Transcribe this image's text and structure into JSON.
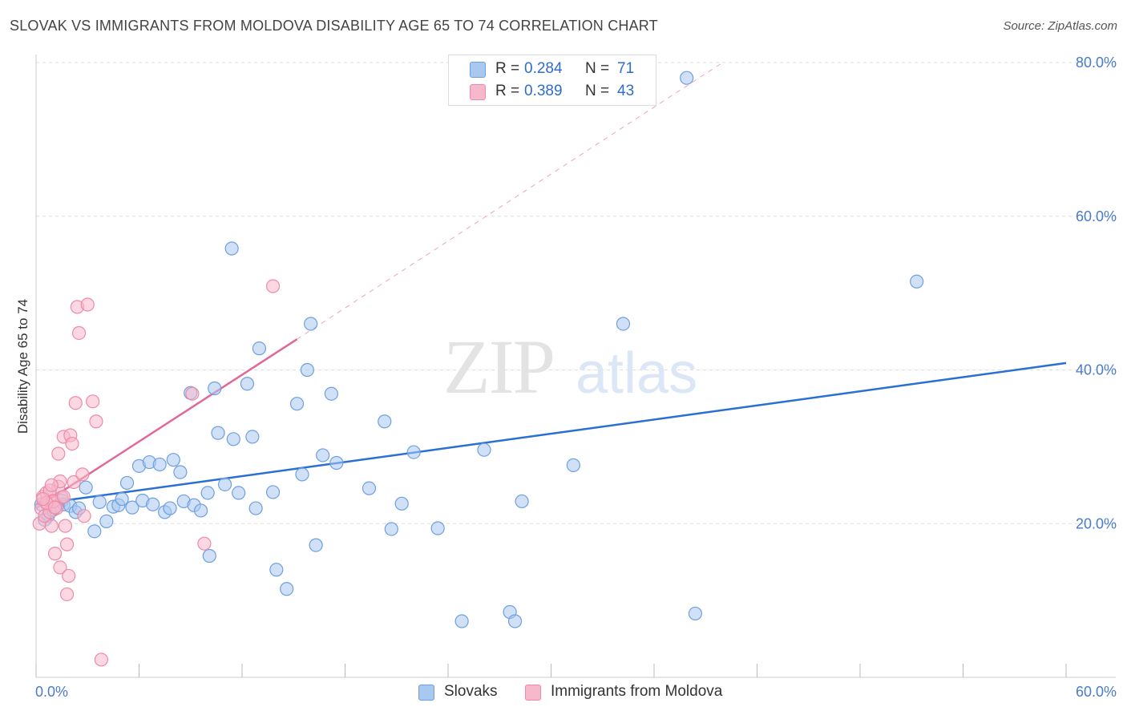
{
  "title": "SLOVAK VS IMMIGRANTS FROM MOLDOVA DISABILITY AGE 65 TO 74 CORRELATION CHART",
  "source": "Source: ZipAtlas.com",
  "watermark": {
    "zip": "ZIP",
    "atlas": "atlas"
  },
  "legend": {
    "rows": [
      {
        "r_label": "R = ",
        "r_value": "0.284",
        "n_label": "N = ",
        "n_value": "71"
      },
      {
        "r_label": "R = ",
        "r_value": "0.389",
        "n_label": "N = ",
        "n_value": "43"
      }
    ],
    "bottom": [
      "Slovaks",
      "Immigrants from Moldova"
    ]
  },
  "colors": {
    "blue_fill": "#a9c8f0",
    "blue_stroke": "#6e9fe0",
    "blue_line": "#2a6fd4",
    "pink_fill": "#f7b8cb",
    "pink_stroke": "#ee8aa8",
    "pink_line": "#e0689a",
    "tick_text": "#4a7bd0",
    "grid": "#dddddd"
  },
  "chart_data": {
    "type": "scatter",
    "title": "SLOVAK VS IMMIGRANTS FROM MOLDOVA DISABILITY AGE 65 TO 74 CORRELATION CHART",
    "xlabel": "",
    "ylabel": "Disability Age 65 to 74",
    "xlim": [
      0,
      60
    ],
    "ylim": [
      0,
      80
    ],
    "x_tick_labels": [
      "0.0%",
      "60.0%"
    ],
    "y_tick_labels": [
      "20.0%",
      "40.0%",
      "60.0%",
      "80.0%"
    ],
    "y_ticks": [
      20,
      40,
      60,
      80
    ],
    "grid": true,
    "series": [
      {
        "name": "Slovaks",
        "color": "#a9c8f0",
        "points": [
          [
            0.3,
            22.5
          ],
          [
            0.7,
            21.0
          ],
          [
            1.0,
            21.8
          ],
          [
            1.5,
            23.0
          ],
          [
            1.6,
            22.5
          ],
          [
            2.0,
            22.3
          ],
          [
            2.3,
            21.5
          ],
          [
            2.5,
            22.0
          ],
          [
            2.9,
            24.7
          ],
          [
            3.4,
            19.0
          ],
          [
            3.7,
            22.8
          ],
          [
            4.1,
            20.3
          ],
          [
            4.5,
            22.2
          ],
          [
            4.8,
            22.4
          ],
          [
            5.0,
            23.2
          ],
          [
            5.3,
            25.3
          ],
          [
            5.6,
            22.1
          ],
          [
            6.0,
            27.5
          ],
          [
            6.2,
            23.0
          ],
          [
            6.6,
            28.0
          ],
          [
            6.8,
            22.5
          ],
          [
            7.2,
            27.7
          ],
          [
            7.5,
            21.5
          ],
          [
            7.8,
            22.0
          ],
          [
            8.0,
            28.3
          ],
          [
            8.4,
            26.7
          ],
          [
            8.6,
            22.9
          ],
          [
            9.0,
            37.0
          ],
          [
            9.2,
            22.4
          ],
          [
            9.6,
            21.7
          ],
          [
            10.0,
            24.0
          ],
          [
            10.1,
            15.8
          ],
          [
            10.4,
            37.6
          ],
          [
            10.6,
            31.8
          ],
          [
            11.0,
            25.1
          ],
          [
            11.4,
            55.8
          ],
          [
            11.5,
            31.0
          ],
          [
            11.8,
            24.0
          ],
          [
            12.3,
            38.2
          ],
          [
            12.6,
            31.3
          ],
          [
            12.8,
            22.0
          ],
          [
            13.0,
            42.8
          ],
          [
            13.8,
            24.1
          ],
          [
            14.0,
            14.0
          ],
          [
            14.6,
            11.5
          ],
          [
            15.2,
            35.6
          ],
          [
            15.5,
            26.4
          ],
          [
            15.8,
            40.0
          ],
          [
            16.0,
            46.0
          ],
          [
            16.3,
            17.2
          ],
          [
            16.7,
            28.9
          ],
          [
            17.2,
            36.9
          ],
          [
            17.5,
            27.9
          ],
          [
            19.4,
            24.6
          ],
          [
            20.3,
            33.3
          ],
          [
            20.7,
            19.3
          ],
          [
            21.3,
            22.6
          ],
          [
            22.0,
            29.3
          ],
          [
            23.4,
            19.4
          ],
          [
            24.8,
            7.3
          ],
          [
            26.1,
            29.6
          ],
          [
            27.6,
            8.5
          ],
          [
            27.9,
            7.3
          ],
          [
            28.3,
            22.9
          ],
          [
            31.3,
            27.6
          ],
          [
            34.2,
            46.0
          ],
          [
            37.9,
            78.0
          ],
          [
            38.4,
            8.3
          ],
          [
            51.3,
            51.5
          ],
          [
            0.5,
            20.5
          ],
          [
            1.2,
            22.3
          ]
        ]
      },
      {
        "name": "Immigrants from Moldova",
        "color": "#f7b8cb",
        "points": [
          [
            0.2,
            20.0
          ],
          [
            0.3,
            22.0
          ],
          [
            0.4,
            23.5
          ],
          [
            0.5,
            21.0
          ],
          [
            0.6,
            24.0
          ],
          [
            0.7,
            22.5
          ],
          [
            0.8,
            21.5
          ],
          [
            0.9,
            19.7
          ],
          [
            1.0,
            23.0
          ],
          [
            1.1,
            16.1
          ],
          [
            1.2,
            22.0
          ],
          [
            1.3,
            29.1
          ],
          [
            1.3,
            24.8
          ],
          [
            1.4,
            25.5
          ],
          [
            1.4,
            14.3
          ],
          [
            1.5,
            23.4
          ],
          [
            1.6,
            31.3
          ],
          [
            1.7,
            19.7
          ],
          [
            1.8,
            17.3
          ],
          [
            1.9,
            13.2
          ],
          [
            2.0,
            31.5
          ],
          [
            2.1,
            30.4
          ],
          [
            2.2,
            25.4
          ],
          [
            2.3,
            35.7
          ],
          [
            2.4,
            48.2
          ],
          [
            2.5,
            44.8
          ],
          [
            2.7,
            26.4
          ],
          [
            2.8,
            21.0
          ],
          [
            3.0,
            48.5
          ],
          [
            3.3,
            35.9
          ],
          [
            3.5,
            33.3
          ],
          [
            3.8,
            2.3
          ],
          [
            1.8,
            10.8
          ],
          [
            0.8,
            24.3
          ],
          [
            1.0,
            22.9
          ],
          [
            0.6,
            22.7
          ],
          [
            0.4,
            23.2
          ],
          [
            9.1,
            36.9
          ],
          [
            9.8,
            17.4
          ],
          [
            13.8,
            50.9
          ],
          [
            1.6,
            23.5
          ],
          [
            0.9,
            25.0
          ],
          [
            1.1,
            22.1
          ]
        ]
      }
    ],
    "trendlines": [
      {
        "series": "Slovaks",
        "x": [
          0,
          60
        ],
        "y": [
          22.5,
          40.9
        ],
        "style": "solid"
      },
      {
        "series": "Immigrants from Moldova",
        "x": [
          0,
          15.2
        ],
        "y": [
          22.0,
          44.0
        ],
        "style": "solid"
      },
      {
        "series": "Immigrants from Moldova",
        "x": [
          15.2,
          40
        ],
        "y": [
          44.0,
          80.0
        ],
        "style": "dashed"
      }
    ]
  }
}
